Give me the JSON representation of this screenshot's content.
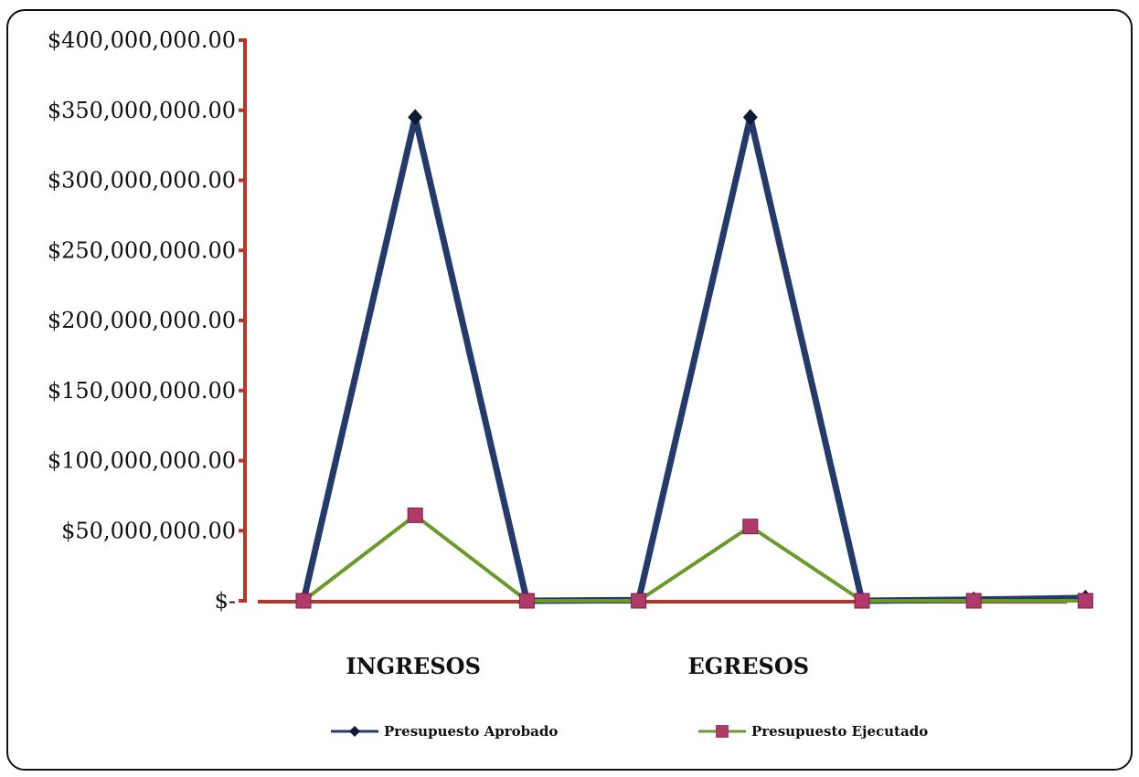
{
  "chart_data": {
    "type": "line",
    "title": "",
    "xlabel": "",
    "ylabel": "",
    "ylim": [
      0,
      400000000
    ],
    "yticks": [
      {
        "value": 0,
        "label": "$-"
      },
      {
        "value": 50000000,
        "label": "$50,000,000.00"
      },
      {
        "value": 100000000,
        "label": "$100,000,000.00"
      },
      {
        "value": 150000000,
        "label": "$150,000,000.00"
      },
      {
        "value": 200000000,
        "label": "$200,000,000.00"
      },
      {
        "value": 250000000,
        "label": "$250,000,000.00"
      },
      {
        "value": 300000000,
        "label": "$300,000,000.00"
      },
      {
        "value": 350000000,
        "label": "$350,000,000.00"
      },
      {
        "value": 400000000,
        "label": "$400,000,000.00"
      }
    ],
    "category_labels": [
      {
        "label": "INGRESOS",
        "at": 1
      },
      {
        "label": "EGRESOS",
        "at": 4
      }
    ],
    "x": [
      0,
      1,
      2,
      3,
      4,
      5,
      6,
      7
    ],
    "series": [
      {
        "name": "Presupuesto Aprobado",
        "color": "#243a6b",
        "marker": "diamond",
        "values": [
          0,
          345000000,
          0,
          500000,
          345000000,
          0,
          800000,
          2000000
        ]
      },
      {
        "name": "Presupuesto Ejecutado",
        "color": "#6a9a2a",
        "marker_color": "#b03a6a",
        "marker": "square",
        "values": [
          0,
          61000000,
          0,
          0,
          53000000,
          0,
          0,
          0
        ]
      }
    ],
    "axis_color": "#b3362a",
    "grid": false,
    "legend_position": "bottom"
  }
}
